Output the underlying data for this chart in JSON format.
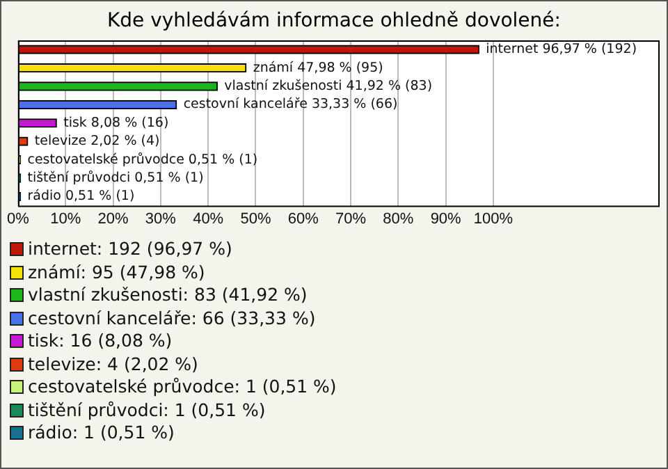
{
  "chart_data": {
    "type": "bar",
    "orientation": "horizontal",
    "stacked": true,
    "title": "Kde vyhledávám informace ohledně dovolené:",
    "categories": [
      null,
      null,
      null,
      null,
      null,
      null,
      null,
      null,
      null
    ],
    "series": [
      {
        "name": "internet: 192 (96,97 %)",
        "color": "#c0160c",
        "values": [
          96.97,
          null,
          null,
          null,
          null,
          null,
          null,
          null,
          null
        ],
        "value_labels": [
          "internet 96,97 % (192)",
          null,
          null,
          null,
          null,
          null,
          null,
          null,
          null
        ]
      },
      {
        "name": "známí: 95 (47,98 %)",
        "color": "#f5e10a",
        "values": [
          null,
          47.98,
          null,
          null,
          null,
          null,
          null,
          null,
          null
        ],
        "value_labels": [
          null,
          "známí 47,98 % (95)",
          null,
          null,
          null,
          null,
          null,
          null,
          null
        ]
      },
      {
        "name": "vlastní zkušenosti: 83 (41,92 %)",
        "color": "#1cb51c",
        "values": [
          null,
          null,
          41.92,
          null,
          null,
          null,
          null,
          null,
          null
        ],
        "value_labels": [
          null,
          null,
          "vlastní zkušenosti 41,92 % (83)",
          null,
          null,
          null,
          null,
          null,
          null
        ]
      },
      {
        "name": "cestovní kanceláře: 66 (33,33 %)",
        "color": "#4a72e8",
        "values": [
          null,
          null,
          null,
          33.33,
          null,
          null,
          null,
          null,
          null
        ],
        "value_labels": [
          null,
          null,
          null,
          "cestovní kanceláře 33,33 % (66)",
          null,
          null,
          null,
          null,
          null
        ]
      },
      {
        "name": "tisk: 16 (8,08 %)",
        "color": "#c41ad4",
        "values": [
          null,
          null,
          null,
          null,
          8.08,
          null,
          null,
          null,
          null
        ],
        "value_labels": [
          null,
          null,
          null,
          null,
          "tisk 8,08 % (16)",
          null,
          null,
          null,
          null
        ]
      },
      {
        "name": "televize: 4 (2,02 %)",
        "color": "#e03a10",
        "values": [
          null,
          null,
          null,
          null,
          null,
          2.02,
          null,
          null,
          null
        ],
        "value_labels": [
          null,
          null,
          null,
          null,
          null,
          "televize 2,02 % (4)",
          null,
          null,
          null
        ]
      },
      {
        "name": "cestovatelské průvodce: 1 (0,51 %)",
        "color": "#c8f07a",
        "values": [
          null,
          null,
          null,
          null,
          null,
          null,
          0.51,
          null,
          null
        ],
        "value_labels": [
          null,
          null,
          null,
          null,
          null,
          null,
          "cestovatelské průvodce 0,51 % (1)",
          null,
          null
        ]
      },
      {
        "name": "tištění průvodci: 1 (0,51 %)",
        "color": "#1a8a5a",
        "values": [
          null,
          null,
          null,
          null,
          null,
          null,
          null,
          0.51,
          null
        ],
        "value_labels": [
          null,
          null,
          null,
          null,
          null,
          null,
          null,
          "tištění průvodci 0,51 % (1)",
          null
        ]
      },
      {
        "name": "rádio: 1 (0,51 %)",
        "color": "#1a7090",
        "values": [
          null,
          null,
          null,
          null,
          null,
          null,
          null,
          null,
          0.51
        ],
        "value_labels": [
          null,
          null,
          null,
          null,
          null,
          null,
          null,
          null,
          "rádio 0,51 % (1)"
        ]
      }
    ],
    "xlim": [
      0,
      135
    ],
    "xticks": [
      {
        "value": 0,
        "label": "0%"
      },
      {
        "value": 10,
        "label": "10%"
      },
      {
        "value": 20,
        "label": "20%"
      },
      {
        "value": 30,
        "label": "30%"
      },
      {
        "value": 40,
        "label": "40%"
      },
      {
        "value": 50,
        "label": "50%"
      },
      {
        "value": 60,
        "label": "60%"
      },
      {
        "value": 70,
        "label": "70%"
      },
      {
        "value": 80,
        "label": "80%"
      },
      {
        "value": 90,
        "label": "90%"
      },
      {
        "value": 100,
        "label": "100%"
      }
    ],
    "grid": "x",
    "legend": "bottom"
  }
}
